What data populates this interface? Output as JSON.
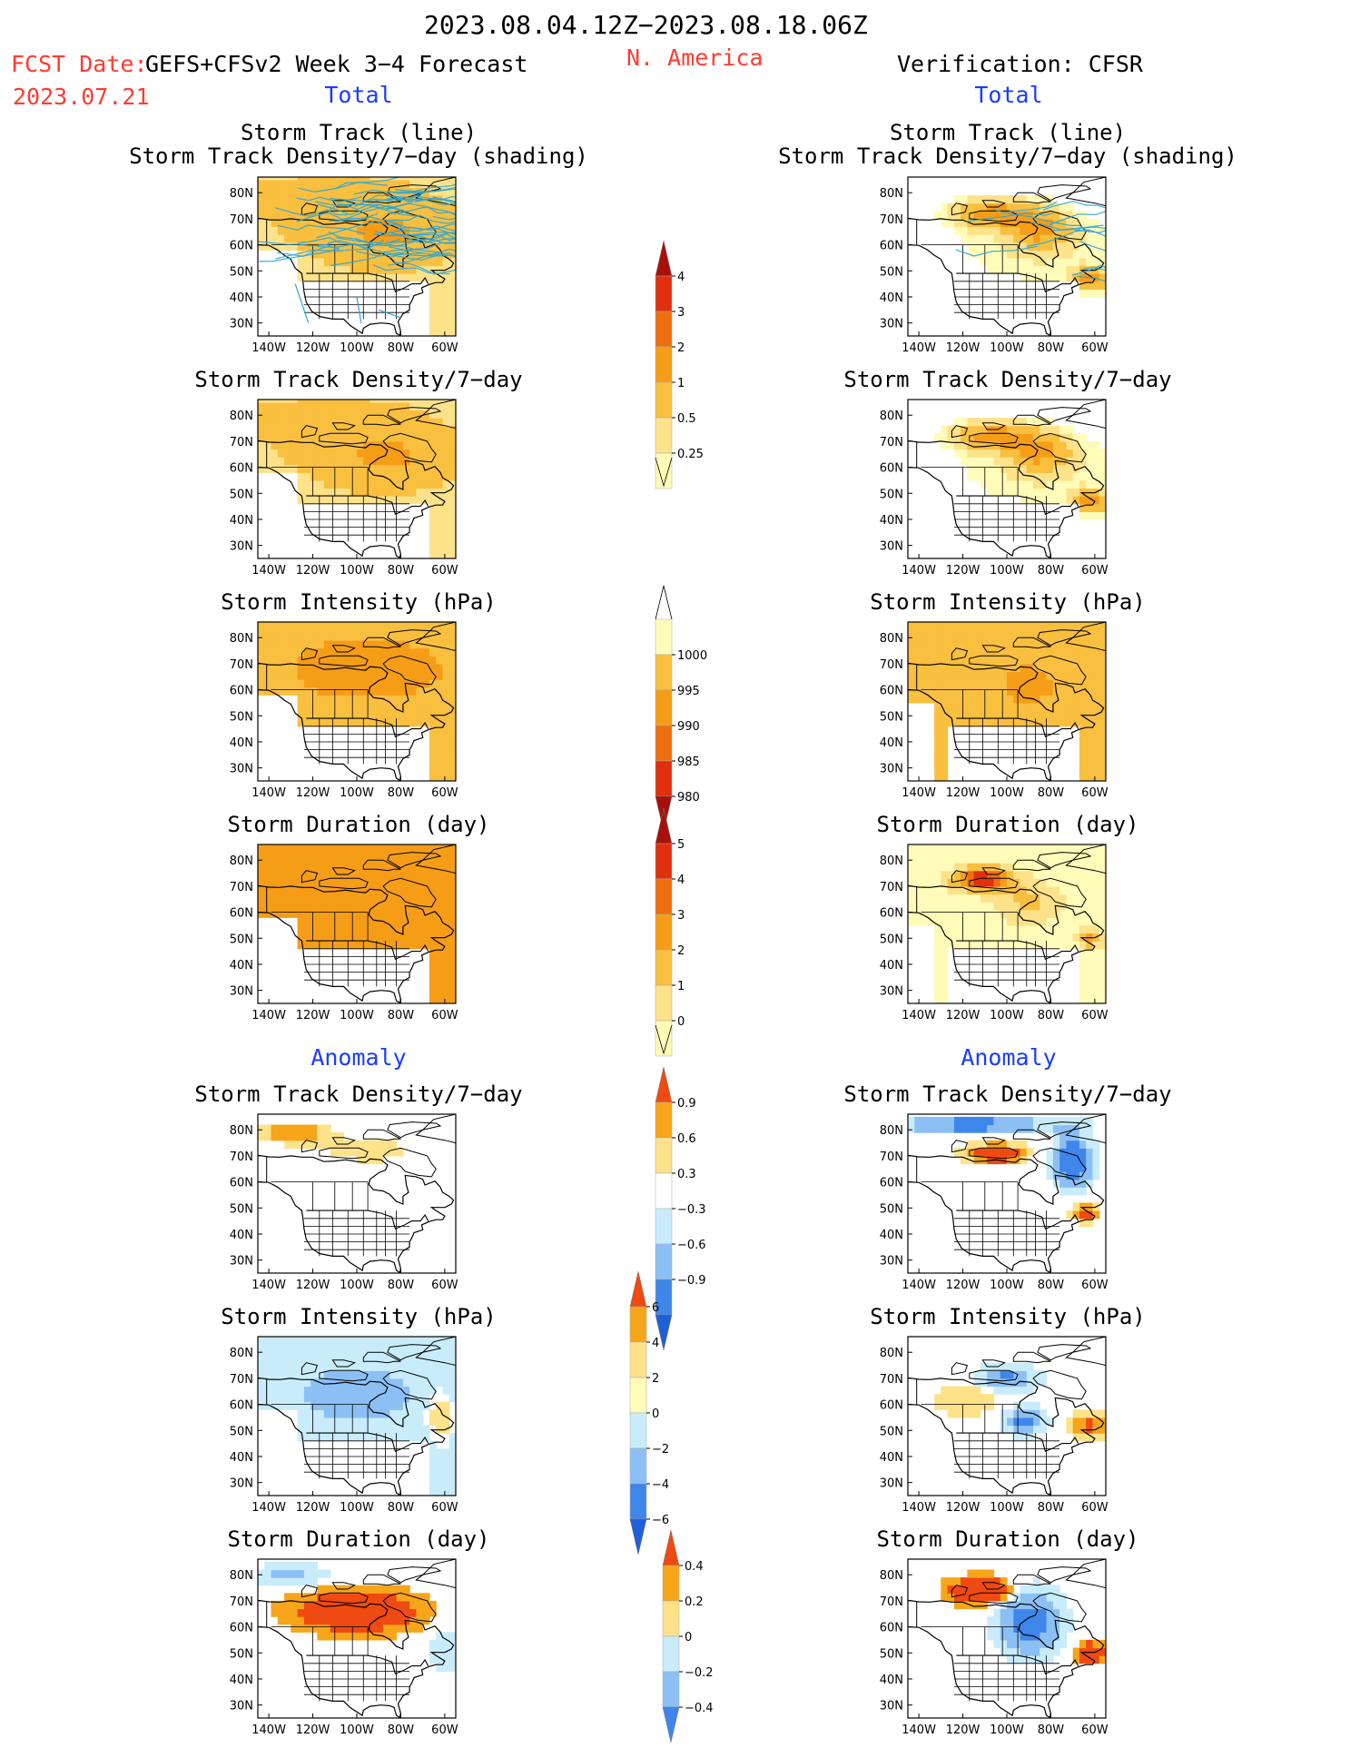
{
  "header": {
    "date_range": "2023.08.04.12Z−2023.08.18.06Z",
    "fcst_label": "FCST Date:",
    "fcst_product": "GEFS+CFSv2 Week 3−4 Forecast",
    "fcst_date": "2023.07.21",
    "region": "N. America",
    "verification": "Verification: CFSR",
    "left_total": "Total",
    "right_total": "Total",
    "left_anomaly": "Anomaly",
    "right_anomaly": "Anomaly"
  },
  "colors": {
    "seq_warm": [
      "#fffbb8",
      "#fde28a",
      "#f9bf3f",
      "#f69d17",
      "#ef6e10",
      "#e0300e",
      "#a8100b"
    ],
    "intensity": [
      "#fffbb8",
      "#f9bf3f",
      "#f69d17",
      "#ef6e10",
      "#e0300e",
      "#a8100b"
    ],
    "anomaly": [
      "#1f5fd8",
      "#3f86ea",
      "#8cc0f5",
      "#c9ecfb",
      "#ffffff",
      "#fde28a",
      "#f7a51a",
      "#ef4a12"
    ],
    "track_line": "#2aa5d8",
    "land_outline": "#000000"
  },
  "chart_data": [
    {
      "panel": "fcst_total_track",
      "type": "heatmap",
      "title_lines": [
        "Storm Track (line)",
        "Storm Track Density/7−day (shading)"
      ],
      "x_ticks": [
        "140W",
        "120W",
        "100W",
        "80W",
        "60W"
      ],
      "y_ticks": [
        "30N",
        "40N",
        "50N",
        "60N",
        "70N",
        "80N"
      ],
      "field": "track_density",
      "overlay": "storm_track_lines",
      "colorbar": "density"
    },
    {
      "panel": "cfsr_total_track",
      "type": "heatmap",
      "title_lines": [
        "Storm Track (line)",
        "Storm Track Density/7−day (shading)"
      ],
      "x_ticks": [
        "140W",
        "120W",
        "100W",
        "80W",
        "60W"
      ],
      "y_ticks": [
        "30N",
        "40N",
        "50N",
        "60N",
        "70N",
        "80N"
      ],
      "field": "track_density",
      "overlay": "storm_track_lines",
      "colorbar": "density"
    },
    {
      "panel": "fcst_total_density",
      "type": "heatmap",
      "title_lines": [
        "Storm Track Density/7−day"
      ],
      "x_ticks": [
        "140W",
        "120W",
        "100W",
        "80W",
        "60W"
      ],
      "y_ticks": [
        "30N",
        "40N",
        "50N",
        "60N",
        "70N",
        "80N"
      ],
      "colorbar": "density"
    },
    {
      "panel": "cfsr_total_density",
      "type": "heatmap",
      "title_lines": [
        "Storm Track Density/7−day"
      ],
      "x_ticks": [
        "140W",
        "120W",
        "100W",
        "80W",
        "60W"
      ],
      "y_ticks": [
        "30N",
        "40N",
        "50N",
        "60N",
        "70N",
        "80N"
      ],
      "colorbar": "density"
    },
    {
      "panel": "fcst_total_intensity",
      "type": "heatmap",
      "title_lines": [
        "Storm Intensity (hPa)"
      ],
      "x_ticks": [
        "140W",
        "120W",
        "100W",
        "80W",
        "60W"
      ],
      "y_ticks": [
        "30N",
        "40N",
        "50N",
        "60N",
        "70N",
        "80N"
      ],
      "colorbar": "intensity"
    },
    {
      "panel": "cfsr_total_intensity",
      "type": "heatmap",
      "title_lines": [
        "Storm Intensity (hPa)"
      ],
      "x_ticks": [
        "140W",
        "120W",
        "100W",
        "80W",
        "60W"
      ],
      "y_ticks": [
        "30N",
        "40N",
        "50N",
        "60N",
        "70N",
        "80N"
      ],
      "colorbar": "intensity"
    },
    {
      "panel": "fcst_total_duration",
      "type": "heatmap",
      "title_lines": [
        "Storm Duration (day)"
      ],
      "x_ticks": [
        "140W",
        "120W",
        "100W",
        "80W",
        "60W"
      ],
      "y_ticks": [
        "30N",
        "40N",
        "50N",
        "60N",
        "70N",
        "80N"
      ],
      "colorbar": "duration"
    },
    {
      "panel": "cfsr_total_duration",
      "type": "heatmap",
      "title_lines": [
        "Storm Duration (day)"
      ],
      "x_ticks": [
        "140W",
        "120W",
        "100W",
        "80W",
        "60W"
      ],
      "y_ticks": [
        "30N",
        "40N",
        "50N",
        "60N",
        "70N",
        "80N"
      ],
      "colorbar": "duration"
    },
    {
      "panel": "fcst_anom_density",
      "type": "heatmap",
      "title_lines": [
        "Storm Track Density/7−day"
      ],
      "x_ticks": [
        "140W",
        "120W",
        "100W",
        "80W",
        "60W"
      ],
      "y_ticks": [
        "30N",
        "40N",
        "50N",
        "60N",
        "70N",
        "80N"
      ],
      "colorbar": "anom_density"
    },
    {
      "panel": "cfsr_anom_density",
      "type": "heatmap",
      "title_lines": [
        "Storm Track Density/7−day"
      ],
      "x_ticks": [
        "140W",
        "120W",
        "100W",
        "80W",
        "60W"
      ],
      "y_ticks": [
        "30N",
        "40N",
        "50N",
        "60N",
        "70N",
        "80N"
      ],
      "colorbar": "anom_density"
    },
    {
      "panel": "fcst_anom_intensity",
      "type": "heatmap",
      "title_lines": [
        "Storm Intensity (hPa)"
      ],
      "x_ticks": [
        "140W",
        "120W",
        "100W",
        "80W",
        "60W"
      ],
      "y_ticks": [
        "30N",
        "40N",
        "50N",
        "60N",
        "70N",
        "80N"
      ],
      "colorbar": "anom_intensity"
    },
    {
      "panel": "cfsr_anom_intensity",
      "type": "heatmap",
      "title_lines": [
        "Storm Intensity (hPa)"
      ],
      "x_ticks": [
        "140W",
        "120W",
        "100W",
        "80W",
        "60W"
      ],
      "y_ticks": [
        "30N",
        "40N",
        "50N",
        "60N",
        "70N",
        "80N"
      ],
      "colorbar": "anom_intensity"
    },
    {
      "panel": "fcst_anom_duration",
      "type": "heatmap",
      "title_lines": [
        "Storm Duration (day)"
      ],
      "x_ticks": [
        "140W",
        "120W",
        "100W",
        "80W",
        "60W"
      ],
      "y_ticks": [
        "30N",
        "40N",
        "50N",
        "60N",
        "70N",
        "80N"
      ],
      "colorbar": "anom_duration"
    },
    {
      "panel": "cfsr_anom_duration",
      "type": "heatmap",
      "title_lines": [
        "Storm Duration (day)"
      ],
      "x_ticks": [
        "140W",
        "120W",
        "100W",
        "80W",
        "60W"
      ],
      "y_ticks": [
        "30N",
        "40N",
        "50N",
        "60N",
        "70N",
        "80N"
      ],
      "colorbar": "anom_duration"
    }
  ],
  "colorbars": {
    "density": {
      "labels": [
        "4",
        "3",
        "2",
        "1",
        "0.5",
        "0.25"
      ],
      "colors": [
        "#a8100b",
        "#e0300e",
        "#ef6e10",
        "#f69d17",
        "#f9bf3f",
        "#fde28a",
        "#fffbb8"
      ]
    },
    "intensity": {
      "labels": [
        "1000",
        "995",
        "990",
        "985",
        "980"
      ],
      "colors": [
        "#fffbb8",
        "#f9bf3f",
        "#f69d17",
        "#ef6e10",
        "#e0300e",
        "#a8100b"
      ]
    },
    "duration": {
      "labels": [
        "5",
        "4",
        "3",
        "2",
        "1",
        "0"
      ],
      "colors": [
        "#a8100b",
        "#e0300e",
        "#ef6e10",
        "#f69d17",
        "#f9bf3f",
        "#fde28a",
        "#fffbb8"
      ]
    },
    "anom_density": {
      "labels": [
        "0.9",
        "0.6",
        "0.3",
        "−0.3",
        "−0.6",
        "−0.9"
      ],
      "colors": [
        "#ef4a12",
        "#f7a51a",
        "#fde28a",
        "#ffffff",
        "#c9ecfb",
        "#8cc0f5",
        "#3f86ea",
        "#1f5fd8"
      ]
    },
    "anom_intensity": {
      "labels": [
        "6",
        "4",
        "2",
        "0",
        "−2",
        "−4",
        "−6"
      ],
      "colors": [
        "#ef4a12",
        "#f7a51a",
        "#fde28a",
        "#fffbb8",
        "#c9ecfb",
        "#8cc0f5",
        "#3f86ea",
        "#1f5fd8"
      ]
    },
    "anom_duration": {
      "labels": [
        "0.4",
        "0.2",
        "0",
        "−0.2",
        "−0.4"
      ],
      "colors": [
        "#ef4a12",
        "#f7a51a",
        "#fde28a",
        "#c9ecfb",
        "#8cc0f5",
        "#3f86ea"
      ]
    }
  }
}
